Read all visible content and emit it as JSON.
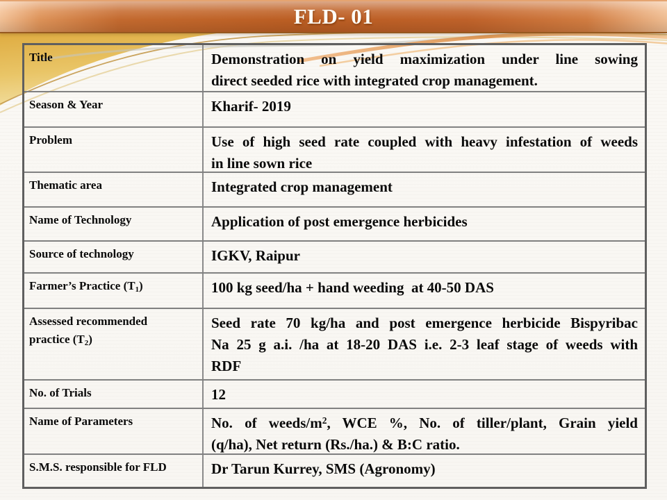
{
  "slide": {
    "title": "FLD- 01"
  },
  "colors": {
    "title_bar_orange_dark": "#BE5F23",
    "title_bar_orange_light": "#F5C398",
    "title_text": "#FFFEF8",
    "gold_accent": "#DFAC41",
    "table_border_gray": "#808080",
    "body_text": "#0A0A0A",
    "slide_background": "#FAF8F4"
  },
  "table": {
    "rows": [
      {
        "label": "Title",
        "justify": true,
        "value_lines": [
          "Demonstration on yield maximization under line sowing",
          "direct seeded rice with integrated crop management."
        ]
      },
      {
        "label": "Season & Year",
        "justify": false,
        "value_lines": [
          "Kharif- 2019"
        ]
      },
      {
        "label": "Problem",
        "justify": true,
        "value_lines": [
          "Use of high seed rate coupled with heavy infestation of weeds",
          "in line sown rice"
        ]
      },
      {
        "label": "Thematic area",
        "justify": false,
        "value_lines": [
          "Integrated crop management"
        ]
      },
      {
        "label": "Name of Technology",
        "justify": false,
        "value_lines": [
          "Application of post emergence herbicides"
        ]
      },
      {
        "label": "Source of technology",
        "justify": false,
        "value_lines": [
          "IGKV, Raipur"
        ]
      },
      {
        "label": "Farmer’s Practice (T_{1})",
        "justify": false,
        "value_lines": [
          "100 kg seed/ha + hand weeding  at 40-50 DAS"
        ]
      },
      {
        "label": "Assessed recommended\npractice (T_{2})",
        "justify": true,
        "value_lines": [
          "Seed rate 70 kg/ha and post emergence herbicide Bispyribac",
          "Na 25 g a.i. /ha at 18-20 DAS i.e. 2-3 leaf stage of weeds with",
          "RDF"
        ]
      },
      {
        "label": "No. of Trials",
        "justify": false,
        "value_lines": [
          "12"
        ]
      },
      {
        "label": "Name of Parameters",
        "justify": true,
        "value_lines": [
          "No. of weeds/m^{2}, WCE %, No. of tiller/plant, Grain yield",
          "(q/ha), Net return (Rs./ha.) & B:C ratio."
        ]
      },
      {
        "label": "S.M.S. responsible for FLD",
        "justify": false,
        "value_lines": [
          "Dr Tarun Kurrey, SMS (Agronomy)"
        ]
      }
    ]
  }
}
